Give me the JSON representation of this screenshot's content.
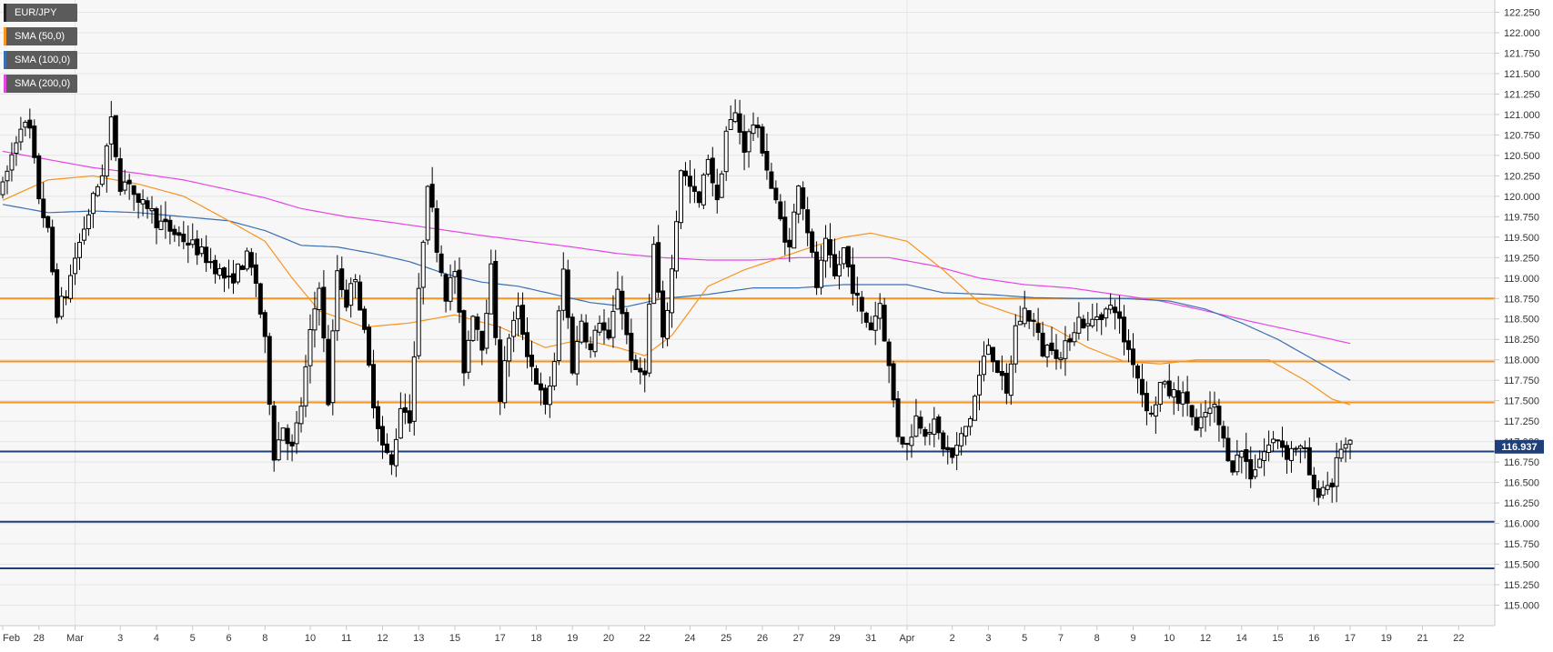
{
  "chart_data": {
    "type": "candlestick",
    "instrument": "EUR/JPY",
    "legend": [
      {
        "label": "EUR/JPY",
        "color": "#222222"
      },
      {
        "label": "SMA (50,0)",
        "color": "#f7931e"
      },
      {
        "label": "SMA (100,0)",
        "color": "#3a6fb5"
      },
      {
        "label": "SMA (200,0)",
        "color": "#e645e6"
      }
    ],
    "ylim": [
      114.75,
      122.4
    ],
    "y_ticks": [
      "115.000",
      "115.250",
      "115.500",
      "115.750",
      "116.000",
      "116.250",
      "116.500",
      "116.750",
      "117.000",
      "117.250",
      "117.500",
      "117.750",
      "118.000",
      "118.250",
      "118.500",
      "118.750",
      "119.000",
      "119.250",
      "119.500",
      "119.750",
      "120.000",
      "120.250",
      "120.500",
      "120.750",
      "121.000",
      "121.250",
      "121.500",
      "121.750",
      "122.000",
      "122.250"
    ],
    "x_ticks": [
      {
        "i": 0,
        "label": "Feb"
      },
      {
        "i": 8,
        "label": "28"
      },
      {
        "i": 16,
        "label": "Mar"
      },
      {
        "i": 26,
        "label": "3"
      },
      {
        "i": 34,
        "label": "4"
      },
      {
        "i": 42,
        "label": "5"
      },
      {
        "i": 50,
        "label": "6"
      },
      {
        "i": 58,
        "label": "8"
      },
      {
        "i": 68,
        "label": "10"
      },
      {
        "i": 76,
        "label": "11"
      },
      {
        "i": 84,
        "label": "12"
      },
      {
        "i": 92,
        "label": "13"
      },
      {
        "i": 100,
        "label": "15"
      },
      {
        "i": 110,
        "label": "17"
      },
      {
        "i": 118,
        "label": "18"
      },
      {
        "i": 126,
        "label": "19"
      },
      {
        "i": 134,
        "label": "20"
      },
      {
        "i": 142,
        "label": "22"
      },
      {
        "i": 152,
        "label": "24"
      },
      {
        "i": 160,
        "label": "25"
      },
      {
        "i": 168,
        "label": "26"
      },
      {
        "i": 176,
        "label": "27"
      },
      {
        "i": 184,
        "label": "29"
      },
      {
        "i": 192,
        "label": "31"
      },
      {
        "i": 200,
        "label": "Apr"
      },
      {
        "i": 210,
        "label": "2"
      },
      {
        "i": 218,
        "label": "3"
      },
      {
        "i": 226,
        "label": "5"
      },
      {
        "i": 234,
        "label": "7"
      },
      {
        "i": 242,
        "label": "8"
      },
      {
        "i": 250,
        "label": "9"
      },
      {
        "i": 258,
        "label": "10"
      },
      {
        "i": 266,
        "label": "12"
      },
      {
        "i": 274,
        "label": "14"
      },
      {
        "i": 282,
        "label": "15"
      },
      {
        "i": 290,
        "label": "16"
      },
      {
        "i": 298,
        "label": "17"
      },
      {
        "i": 306,
        "label": "19"
      },
      {
        "i": 314,
        "label": "21"
      },
      {
        "i": 322,
        "label": "22"
      }
    ],
    "candle_anchors": [
      [
        0,
        120.1
      ],
      [
        4,
        120.9
      ],
      [
        6,
        120.8
      ],
      [
        8,
        120.0
      ],
      [
        10,
        119.55
      ],
      [
        12,
        118.6
      ],
      [
        14,
        118.8
      ],
      [
        16,
        119.25
      ],
      [
        19,
        119.8
      ],
      [
        22,
        120.3
      ],
      [
        24,
        120.9
      ],
      [
        26,
        120.15
      ],
      [
        28,
        120.2
      ],
      [
        30,
        119.85
      ],
      [
        32,
        119.9
      ],
      [
        34,
        119.7
      ],
      [
        38,
        119.55
      ],
      [
        42,
        119.4
      ],
      [
        46,
        119.2
      ],
      [
        50,
        118.95
      ],
      [
        54,
        119.25
      ],
      [
        56,
        118.95
      ],
      [
        58,
        118.2
      ],
      [
        60,
        116.85
      ],
      [
        62,
        117.2
      ],
      [
        64,
        116.9
      ],
      [
        66,
        117.45
      ],
      [
        68,
        118.3
      ],
      [
        70,
        118.95
      ],
      [
        72,
        117.5
      ],
      [
        74,
        119.1
      ],
      [
        76,
        118.7
      ],
      [
        78,
        119.05
      ],
      [
        80,
        118.3
      ],
      [
        82,
        117.5
      ],
      [
        84,
        116.95
      ],
      [
        86,
        116.7
      ],
      [
        88,
        117.45
      ],
      [
        90,
        117.3
      ],
      [
        92,
        118.8
      ],
      [
        94,
        120.2
      ],
      [
        96,
        119.4
      ],
      [
        98,
        118.8
      ],
      [
        100,
        119.1
      ],
      [
        102,
        117.9
      ],
      [
        104,
        118.6
      ],
      [
        106,
        118.2
      ],
      [
        108,
        119.1
      ],
      [
        110,
        117.55
      ],
      [
        112,
        118.3
      ],
      [
        114,
        118.6
      ],
      [
        116,
        118.1
      ],
      [
        118,
        117.75
      ],
      [
        120,
        117.4
      ],
      [
        122,
        118.0
      ],
      [
        124,
        119.1
      ],
      [
        126,
        117.9
      ],
      [
        128,
        118.5
      ],
      [
        130,
        118.1
      ],
      [
        132,
        118.5
      ],
      [
        134,
        118.2
      ],
      [
        136,
        118.9
      ],
      [
        138,
        118.3
      ],
      [
        140,
        117.8
      ],
      [
        142,
        117.9
      ],
      [
        144,
        119.4
      ],
      [
        146,
        118.2
      ],
      [
        148,
        119.1
      ],
      [
        150,
        120.35
      ],
      [
        152,
        120.1
      ],
      [
        154,
        119.9
      ],
      [
        156,
        120.5
      ],
      [
        158,
        119.9
      ],
      [
        160,
        120.8
      ],
      [
        162,
        121.0
      ],
      [
        164,
        120.6
      ],
      [
        166,
        120.9
      ],
      [
        168,
        120.6
      ],
      [
        170,
        120.1
      ],
      [
        172,
        119.7
      ],
      [
        174,
        119.35
      ],
      [
        176,
        120.2
      ],
      [
        178,
        119.6
      ],
      [
        180,
        118.9
      ],
      [
        182,
        119.4
      ],
      [
        184,
        119.0
      ],
      [
        186,
        119.35
      ],
      [
        188,
        118.9
      ],
      [
        190,
        118.55
      ],
      [
        192,
        118.4
      ],
      [
        194,
        118.7
      ],
      [
        196,
        117.9
      ],
      [
        198,
        117.1
      ],
      [
        200,
        116.95
      ],
      [
        202,
        117.3
      ],
      [
        204,
        117.15
      ],
      [
        206,
        117.2
      ],
      [
        208,
        116.95
      ],
      [
        210,
        116.8
      ],
      [
        212,
        117.05
      ],
      [
        214,
        117.3
      ],
      [
        216,
        117.8
      ],
      [
        218,
        118.2
      ],
      [
        220,
        117.9
      ],
      [
        222,
        117.55
      ],
      [
        224,
        118.4
      ],
      [
        226,
        118.6
      ],
      [
        228,
        118.45
      ],
      [
        230,
        118.1
      ],
      [
        232,
        118.2
      ],
      [
        234,
        118.0
      ],
      [
        236,
        118.3
      ],
      [
        238,
        118.5
      ],
      [
        240,
        118.4
      ],
      [
        242,
        118.55
      ],
      [
        244,
        118.6
      ],
      [
        246,
        118.65
      ],
      [
        248,
        118.25
      ],
      [
        250,
        118.0
      ],
      [
        252,
        117.6
      ],
      [
        254,
        117.3
      ],
      [
        256,
        117.7
      ],
      [
        258,
        117.6
      ],
      [
        260,
        117.55
      ],
      [
        262,
        117.5
      ],
      [
        264,
        117.1
      ],
      [
        266,
        117.35
      ],
      [
        268,
        117.4
      ],
      [
        270,
        117.0
      ],
      [
        272,
        116.7
      ],
      [
        274,
        116.9
      ],
      [
        276,
        116.6
      ],
      [
        278,
        116.8
      ],
      [
        280,
        116.95
      ],
      [
        282,
        117.05
      ],
      [
        284,
        116.85
      ],
      [
        286,
        116.95
      ],
      [
        288,
        116.85
      ],
      [
        290,
        116.35
      ],
      [
        292,
        116.45
      ],
      [
        294,
        116.5
      ],
      [
        296,
        116.95
      ],
      [
        298,
        116.93
      ]
    ],
    "sma50_anchors": [
      [
        0,
        119.95
      ],
      [
        10,
        120.2
      ],
      [
        20,
        120.25
      ],
      [
        30,
        120.15
      ],
      [
        40,
        120.0
      ],
      [
        50,
        119.7
      ],
      [
        58,
        119.45
      ],
      [
        64,
        119.0
      ],
      [
        70,
        118.6
      ],
      [
        80,
        118.4
      ],
      [
        90,
        118.45
      ],
      [
        100,
        118.55
      ],
      [
        110,
        118.4
      ],
      [
        120,
        118.15
      ],
      [
        128,
        118.25
      ],
      [
        136,
        118.15
      ],
      [
        142,
        118.05
      ],
      [
        148,
        118.3
      ],
      [
        156,
        118.9
      ],
      [
        164,
        119.1
      ],
      [
        172,
        119.25
      ],
      [
        180,
        119.4
      ],
      [
        186,
        119.5
      ],
      [
        192,
        119.55
      ],
      [
        200,
        119.45
      ],
      [
        208,
        119.1
      ],
      [
        216,
        118.7
      ],
      [
        224,
        118.55
      ],
      [
        232,
        118.4
      ],
      [
        240,
        118.15
      ],
      [
        248,
        117.98
      ],
      [
        256,
        117.95
      ],
      [
        264,
        118.0
      ],
      [
        272,
        118.0
      ],
      [
        280,
        118.0
      ],
      [
        288,
        117.75
      ],
      [
        294,
        117.52
      ],
      [
        298,
        117.45
      ]
    ],
    "sma100_anchors": [
      [
        0,
        119.9
      ],
      [
        10,
        119.8
      ],
      [
        20,
        119.82
      ],
      [
        30,
        119.8
      ],
      [
        40,
        119.75
      ],
      [
        50,
        119.7
      ],
      [
        58,
        119.58
      ],
      [
        66,
        119.4
      ],
      [
        74,
        119.38
      ],
      [
        82,
        119.3
      ],
      [
        90,
        119.2
      ],
      [
        98,
        119.05
      ],
      [
        106,
        118.95
      ],
      [
        114,
        118.9
      ],
      [
        122,
        118.8
      ],
      [
        130,
        118.7
      ],
      [
        138,
        118.65
      ],
      [
        146,
        118.75
      ],
      [
        156,
        118.8
      ],
      [
        166,
        118.88
      ],
      [
        176,
        118.88
      ],
      [
        186,
        118.92
      ],
      [
        194,
        118.92
      ],
      [
        200,
        118.92
      ],
      [
        208,
        118.82
      ],
      [
        218,
        118.8
      ],
      [
        228,
        118.76
      ],
      [
        238,
        118.75
      ],
      [
        248,
        118.75
      ],
      [
        258,
        118.72
      ],
      [
        266,
        118.62
      ],
      [
        274,
        118.45
      ],
      [
        282,
        118.25
      ],
      [
        290,
        118.0
      ],
      [
        298,
        117.75
      ]
    ],
    "sma200_anchors": [
      [
        0,
        120.55
      ],
      [
        10,
        120.45
      ],
      [
        20,
        120.35
      ],
      [
        30,
        120.28
      ],
      [
        40,
        120.2
      ],
      [
        50,
        120.08
      ],
      [
        58,
        119.98
      ],
      [
        66,
        119.85
      ],
      [
        76,
        119.75
      ],
      [
        86,
        119.68
      ],
      [
        96,
        119.6
      ],
      [
        106,
        119.52
      ],
      [
        116,
        119.45
      ],
      [
        126,
        119.38
      ],
      [
        136,
        119.3
      ],
      [
        146,
        119.25
      ],
      [
        156,
        119.22
      ],
      [
        166,
        119.22
      ],
      [
        176,
        119.25
      ],
      [
        186,
        119.25
      ],
      [
        196,
        119.25
      ],
      [
        206,
        119.15
      ],
      [
        216,
        119.0
      ],
      [
        226,
        118.92
      ],
      [
        236,
        118.88
      ],
      [
        246,
        118.8
      ],
      [
        256,
        118.72
      ],
      [
        266,
        118.6
      ],
      [
        276,
        118.47
      ],
      [
        286,
        118.35
      ],
      [
        298,
        118.2
      ]
    ],
    "horizontal_levels": [
      {
        "value": 118.75,
        "color": "#f7931e"
      },
      {
        "value": 117.98,
        "color": "#f7931e"
      },
      {
        "value": 117.48,
        "color": "#f7931e"
      },
      {
        "value": 116.88,
        "color": "#1f3f7a"
      },
      {
        "value": 116.02,
        "color": "#1f3f7a"
      },
      {
        "value": 115.45,
        "color": "#1f3f7a"
      }
    ],
    "current_price": "116.937",
    "current_price_value": 116.937,
    "grid": true
  }
}
